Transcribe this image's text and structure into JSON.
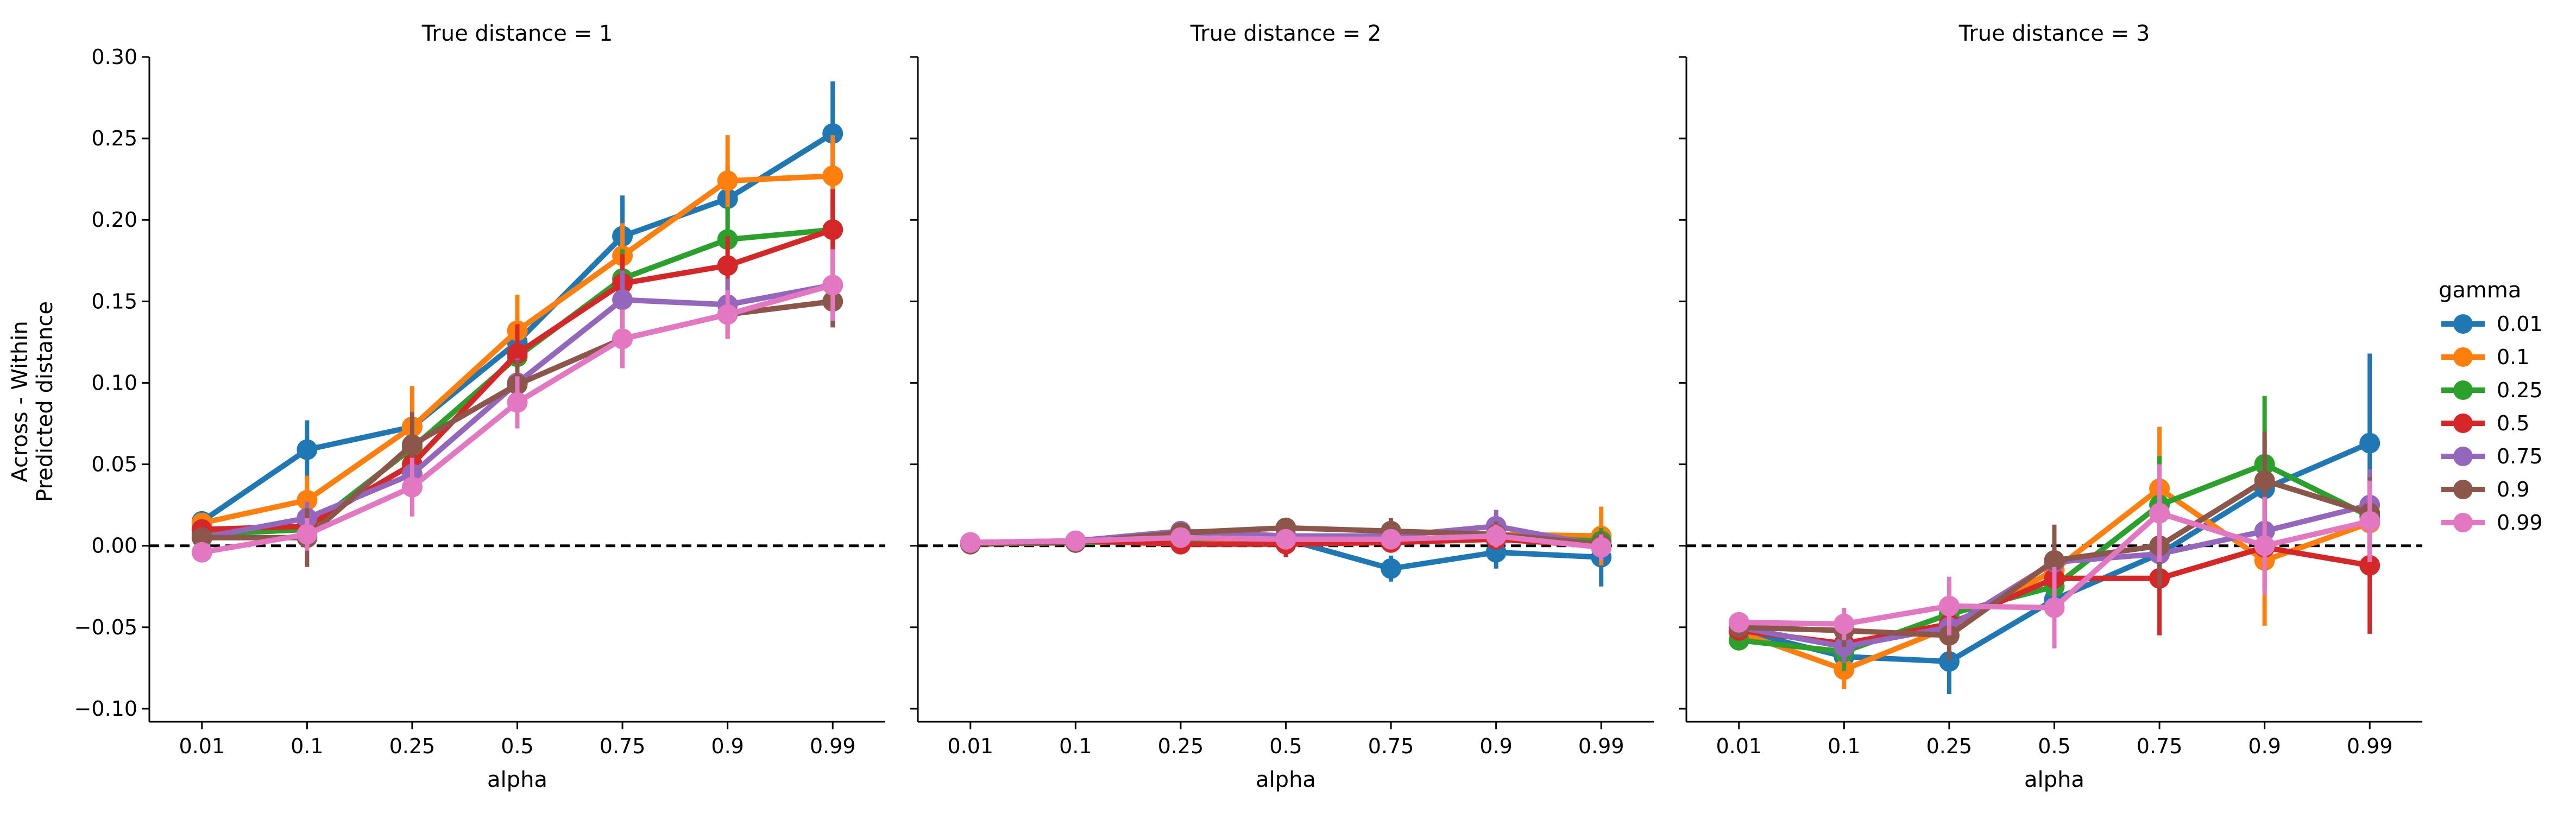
{
  "chart_data": {
    "type": "line",
    "ylabel_lines": [
      "Across - Within",
      "Predicted distance"
    ],
    "xlabel": "alpha",
    "categories": [
      "0.01",
      "0.1",
      "0.25",
      "0.5",
      "0.75",
      "0.9",
      "0.99"
    ],
    "ylim": [
      -0.108,
      0.3
    ],
    "yticks": [
      "−0.10",
      "−0.05",
      "0.00",
      "0.05",
      "0.10",
      "0.15",
      "0.20",
      "0.25",
      "0.30"
    ],
    "ytick_values": [
      -0.1,
      -0.05,
      0.0,
      0.05,
      0.1,
      0.15,
      0.2,
      0.25,
      0.3
    ],
    "reference_line": {
      "y": 0,
      "style": "dashed"
    },
    "legend": {
      "title": "gamma",
      "placement": "right"
    },
    "series_meta": [
      {
        "name": "0.01",
        "color": "#1f77b4"
      },
      {
        "name": "0.1",
        "color": "#ff7f0e"
      },
      {
        "name": "0.25",
        "color": "#2ca02c"
      },
      {
        "name": "0.5",
        "color": "#d62728"
      },
      {
        "name": "0.75",
        "color": "#9467bd"
      },
      {
        "name": "0.9",
        "color": "#8c564b"
      },
      {
        "name": "0.99",
        "color": "#e377c2"
      }
    ],
    "panels": [
      {
        "title": "True distance = 1",
        "series": [
          {
            "name": "0.01",
            "values": [
              0.015,
              0.059,
              0.073,
              0.125,
              0.19,
              0.213,
              0.253
            ],
            "err": [
              0.005,
              0.018,
              0.025,
              0.02,
              0.025,
              0.02,
              0.032
            ]
          },
          {
            "name": "0.1",
            "values": [
              0.014,
              0.028,
              0.073,
              0.132,
              0.178,
              0.224,
              0.227
            ],
            "err": [
              0.004,
              0.015,
              0.025,
              0.022,
              0.02,
              0.028,
              0.025
            ]
          },
          {
            "name": "0.25",
            "values": [
              0.007,
              0.01,
              0.06,
              0.116,
              0.164,
              0.188,
              0.194
            ],
            "err": [
              0.004,
              0.012,
              0.018,
              0.018,
              0.018,
              0.02,
              0.02
            ]
          },
          {
            "name": "0.5",
            "values": [
              0.01,
              0.012,
              0.05,
              0.118,
              0.161,
              0.172,
              0.194
            ],
            "err": [
              0.004,
              0.01,
              0.015,
              0.018,
              0.018,
              0.018,
              0.025
            ]
          },
          {
            "name": "0.75",
            "values": [
              0.005,
              0.017,
              0.044,
              0.1,
              0.151,
              0.148,
              0.16
            ],
            "err": [
              0.004,
              0.01,
              0.015,
              0.015,
              0.018,
              0.016,
              0.018
            ]
          },
          {
            "name": "0.9",
            "values": [
              0.005,
              0.005,
              0.062,
              0.099,
              0.127,
              0.142,
              0.15
            ],
            "err": [
              0.004,
              0.018,
              0.02,
              0.015,
              0.018,
              0.015,
              0.016
            ]
          },
          {
            "name": "0.99",
            "values": [
              -0.004,
              0.007,
              0.036,
              0.088,
              0.127,
              0.142,
              0.16
            ],
            "err": [
              0.004,
              0.01,
              0.018,
              0.016,
              0.018,
              0.015,
              0.022
            ]
          }
        ]
      },
      {
        "title": "True distance = 2",
        "series": [
          {
            "name": "0.01",
            "values": [
              0.002,
              0.002,
              0.006,
              0.004,
              -0.014,
              -0.004,
              -0.007
            ],
            "err": [
              0.002,
              0.002,
              0.004,
              0.005,
              0.008,
              0.01,
              0.018
            ]
          },
          {
            "name": "0.1",
            "values": [
              0.002,
              0.002,
              0.003,
              0.004,
              0.003,
              0.007,
              0.006
            ],
            "err": [
              0.002,
              0.002,
              0.003,
              0.004,
              0.005,
              0.008,
              0.018
            ]
          },
          {
            "name": "0.25",
            "values": [
              0.001,
              0.002,
              0.004,
              0.006,
              0.003,
              0.005,
              0.003
            ],
            "err": [
              0.002,
              0.002,
              0.003,
              0.004,
              0.005,
              0.006,
              0.008
            ]
          },
          {
            "name": "0.5",
            "values": [
              0.002,
              0.003,
              0.001,
              0.001,
              0.002,
              0.004,
              0.0
            ],
            "err": [
              0.002,
              0.002,
              0.003,
              0.008,
              0.005,
              0.005,
              0.006
            ]
          },
          {
            "name": "0.75",
            "values": [
              0.002,
              0.003,
              0.009,
              0.006,
              0.006,
              0.012,
              0.0
            ],
            "err": [
              0.002,
              0.002,
              0.004,
              0.005,
              0.006,
              0.01,
              0.008
            ]
          },
          {
            "name": "0.9",
            "values": [
              0.001,
              0.002,
              0.008,
              0.011,
              0.009,
              0.007,
              0.001
            ],
            "err": [
              0.002,
              0.002,
              0.004,
              0.006,
              0.008,
              0.008,
              0.008
            ]
          },
          {
            "name": "0.99",
            "values": [
              0.002,
              0.003,
              0.005,
              0.004,
              0.004,
              0.006,
              -0.001
            ],
            "err": [
              0.002,
              0.002,
              0.003,
              0.005,
              0.006,
              0.007,
              0.008
            ]
          }
        ]
      },
      {
        "title": "True distance = 3",
        "series": [
          {
            "name": "0.01",
            "values": [
              -0.052,
              -0.068,
              -0.071,
              -0.033,
              -0.005,
              0.035,
              0.063
            ],
            "err": [
              0.006,
              0.01,
              0.02,
              0.015,
              0.018,
              0.03,
              0.055
            ]
          },
          {
            "name": "0.1",
            "values": [
              -0.053,
              -0.076,
              -0.05,
              -0.015,
              0.035,
              -0.009,
              0.014
            ],
            "err": [
              0.006,
              0.012,
              0.015,
              0.018,
              0.038,
              0.04,
              0.025
            ]
          },
          {
            "name": "0.25",
            "values": [
              -0.058,
              -0.065,
              -0.042,
              -0.025,
              0.025,
              0.05,
              0.018
            ],
            "err": [
              0.006,
              0.012,
              0.015,
              0.018,
              0.03,
              0.042,
              0.025
            ]
          },
          {
            "name": "0.5",
            "values": [
              -0.052,
              -0.06,
              -0.048,
              -0.02,
              -0.02,
              -0.001,
              -0.012
            ],
            "err": [
              0.006,
              0.01,
              0.015,
              0.018,
              0.035,
              0.025,
              0.042
            ]
          },
          {
            "name": "0.75",
            "values": [
              -0.05,
              -0.062,
              -0.05,
              -0.01,
              -0.005,
              0.009,
              0.025
            ],
            "err": [
              0.006,
              0.01,
              0.015,
              0.015,
              0.018,
              0.02,
              0.022
            ]
          },
          {
            "name": "0.9",
            "values": [
              -0.05,
              -0.052,
              -0.055,
              -0.009,
              0.0,
              0.04,
              0.02
            ],
            "err": [
              0.006,
              0.01,
              0.015,
              0.022,
              0.025,
              0.03,
              0.022
            ]
          },
          {
            "name": "0.99",
            "values": [
              -0.047,
              -0.048,
              -0.037,
              -0.038,
              0.02,
              0.0,
              0.015
            ],
            "err": [
              0.006,
              0.01,
              0.018,
              0.025,
              0.03,
              0.03,
              0.025
            ]
          }
        ]
      }
    ]
  }
}
